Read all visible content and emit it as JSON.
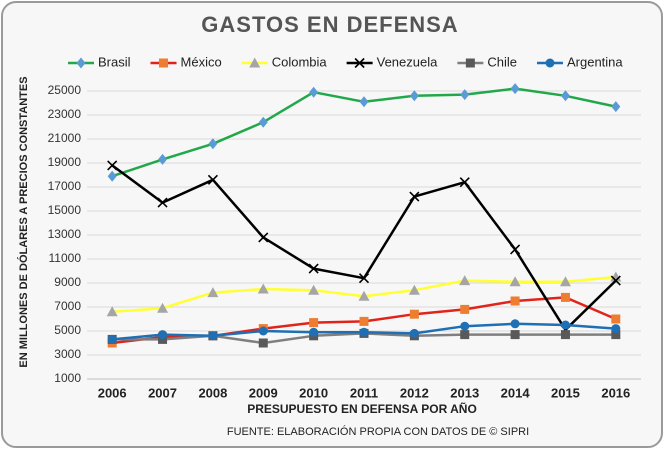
{
  "chart_data": {
    "type": "line",
    "title": "GASTOS EN DEFENSA",
    "x_label": "PRESUPUESTO EN DEFENSA POR AÑO",
    "y_label": "EN MILLONES DE DÓLARES A PRECIOS CONSTANTES",
    "source": "FUENTE: ELABORACIÓN PROPIA CON DATOS DE  © SIPRI",
    "categories": [
      "2006",
      "2007",
      "2008",
      "2009",
      "2010",
      "2011",
      "2012",
      "2013",
      "2014",
      "2015",
      "2016"
    ],
    "ylim": [
      1000,
      26000
    ],
    "yticks": [
      1000,
      3000,
      5000,
      7000,
      9000,
      11000,
      13000,
      15000,
      17000,
      19000,
      21000,
      23000,
      25000
    ],
    "grid": true,
    "legend": "top",
    "series": [
      {
        "name": "Brasil",
        "color": "#21a84a",
        "marker_color": "#5b9bd5",
        "marker": "diamond",
        "values": [
          17900,
          19300,
          20600,
          22400,
          24900,
          24100,
          24600,
          24700,
          25200,
          24600,
          23700
        ]
      },
      {
        "name": "México",
        "color": "#e2231a",
        "marker_color": "#ed7d31",
        "marker": "square",
        "values": [
          4000,
          4500,
          4600,
          5200,
          5700,
          5800,
          6400,
          6800,
          7500,
          7800,
          6000
        ]
      },
      {
        "name": "Colombia",
        "color": "#ffff33",
        "marker_color": "#a5a5a5",
        "marker": "triangle",
        "values": [
          6600,
          6900,
          8200,
          8500,
          8400,
          7900,
          8400,
          9200,
          9100,
          9100,
          9500
        ]
      },
      {
        "name": "Venezuela",
        "color": "#000000",
        "marker_color": "#000000",
        "marker": "x",
        "values": [
          18800,
          15700,
          17600,
          12800,
          10200,
          9400,
          16200,
          17400,
          11800,
          5100,
          9200
        ]
      },
      {
        "name": "Chile",
        "color": "#7f7f7f",
        "marker_color": "#595959",
        "marker": "square",
        "values": [
          4300,
          4300,
          4600,
          4000,
          4600,
          4800,
          4600,
          4700,
          4700,
          4700,
          4700
        ]
      },
      {
        "name": "Argentina",
        "color": "#1f6fb5",
        "marker_color": "#1f6fb5",
        "marker": "circle",
        "values": [
          4300,
          4700,
          4600,
          5000,
          4900,
          4900,
          4800,
          5400,
          5600,
          5500,
          5200
        ]
      }
    ]
  }
}
